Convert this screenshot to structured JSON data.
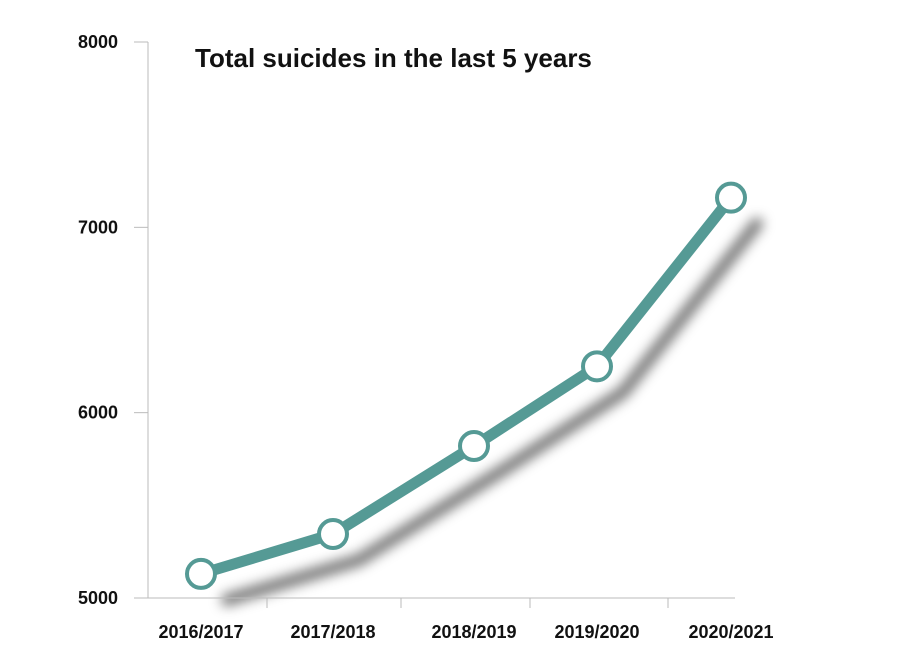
{
  "chart_data": {
    "type": "line",
    "title": "Total suicides in the last 5 years",
    "xlabel": "",
    "ylabel": "",
    "categories": [
      "2016/2017",
      "2017/2018",
      "2018/2019",
      "2019/2020",
      "2020/2021"
    ],
    "series": [
      {
        "values": [
          5130,
          5345,
          5820,
          6250,
          7160
        ]
      }
    ],
    "ylim": [
      5000,
      8000
    ],
    "yticks": [
      5000,
      6000,
      7000,
      8000
    ],
    "grid": false,
    "legend": "none"
  },
  "colors": {
    "line": "#559A95",
    "marker_fill": "#ffffff",
    "marker_stroke": "#559A95",
    "axis": "#bbbbbb",
    "shadow": "#000000"
  }
}
